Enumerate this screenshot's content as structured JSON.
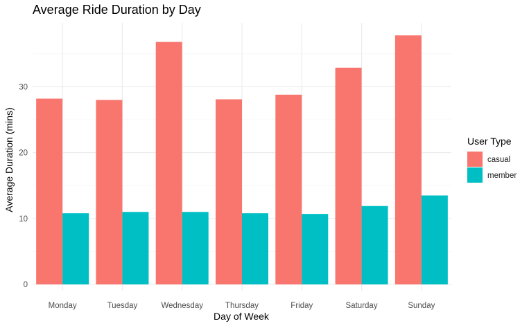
{
  "chart_data": {
    "type": "bar",
    "title": "Average Ride Duration by Day",
    "xlabel": "Day of Week",
    "ylabel": "Average Duration (mins)",
    "categories": [
      "Monday",
      "Tuesday",
      "Wednesday",
      "Thursday",
      "Friday",
      "Saturday",
      "Sunday"
    ],
    "series": [
      {
        "name": "casual",
        "color": "#F8766D",
        "values": [
          28.2,
          28.0,
          36.8,
          28.1,
          28.8,
          32.9,
          37.8
        ]
      },
      {
        "name": "member",
        "color": "#00BFC4",
        "values": [
          10.8,
          11.0,
          11.0,
          10.8,
          10.7,
          11.9,
          13.5
        ]
      }
    ],
    "ylim": [
      0,
      40
    ],
    "yticks": [
      0,
      10,
      20,
      30
    ],
    "grid": true,
    "legend": {
      "title": "User Type",
      "position": "right"
    }
  }
}
